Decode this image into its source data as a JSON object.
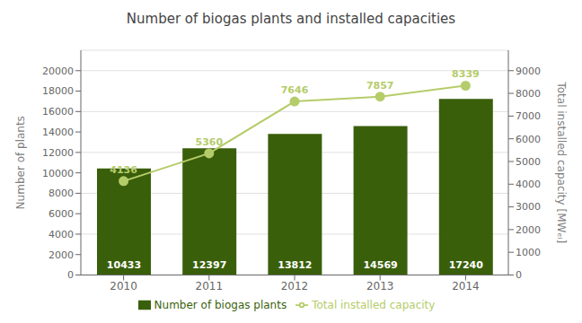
{
  "chart_data": {
    "type": "bar",
    "title": "Number of biogas plants and installed capacities",
    "categories": [
      "2010",
      "2011",
      "2012",
      "2013",
      "2014"
    ],
    "series": [
      {
        "name": "Number of biogas plants",
        "type": "bar",
        "color": "#3a5f0b",
        "values": [
          10433,
          12397,
          13812,
          14569,
          17240
        ]
      },
      {
        "name": "Total installed capacity",
        "type": "line",
        "axis": "y2",
        "color": "#b5cc6a",
        "marker": "circle",
        "values": [
          4136,
          5360,
          7646,
          7857,
          8339
        ]
      }
    ],
    "ylabel": "Number of plants",
    "y2label": "Total installed capacity [MWₑₗ]",
    "ylim": [
      0,
      22000
    ],
    "yticks": [
      0,
      2000,
      4000,
      6000,
      8000,
      10000,
      12000,
      14000,
      16000,
      18000,
      20000
    ],
    "y2lim": [
      0,
      9900
    ],
    "y2ticks": [
      0,
      1000,
      2000,
      3000,
      4000,
      5000,
      6000,
      7000,
      8000,
      9000
    ],
    "grid": true,
    "legend": "bottom",
    "data_labels": true
  }
}
